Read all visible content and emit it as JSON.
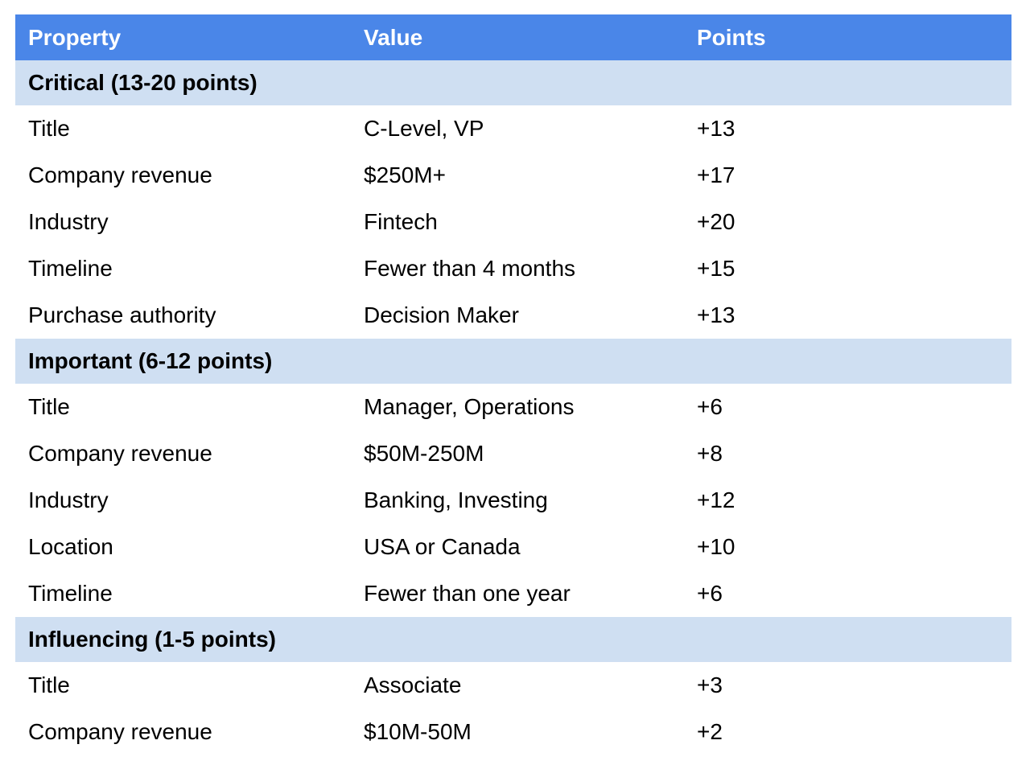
{
  "colors": {
    "header_bg": "#4a86e8",
    "header_text": "#ffffff",
    "section_band_bg": "#cfdff2",
    "body_text": "#000000",
    "page_bg": "#ffffff"
  },
  "table": {
    "columns": [
      "Property",
      "Value",
      "Points"
    ],
    "sections": [
      {
        "title": "Critical (13-20 points)",
        "rows": [
          {
            "property": "Title",
            "value": "C-Level, VP",
            "points": "+13"
          },
          {
            "property": "Company revenue",
            "value": "$250M+",
            "points": "+17"
          },
          {
            "property": "Industry",
            "value": "Fintech",
            "points": "+20"
          },
          {
            "property": "Timeline",
            "value": "Fewer than 4 months",
            "points": "+15"
          },
          {
            "property": "Purchase authority",
            "value": "Decision Maker",
            "points": "+13"
          }
        ]
      },
      {
        "title": "Important (6-12 points)",
        "rows": [
          {
            "property": "Title",
            "value": "Manager, Operations",
            "points": "+6"
          },
          {
            "property": "Company revenue",
            "value": "$50M-250M",
            "points": "+8"
          },
          {
            "property": "Industry",
            "value": "Banking, Investing",
            "points": "+12"
          },
          {
            "property": "Location",
            "value": "USA or Canada",
            "points": "+10"
          },
          {
            "property": "Timeline",
            "value": "Fewer than one year",
            "points": "+6"
          }
        ]
      },
      {
        "title": "Influencing (1-5 points)",
        "rows": [
          {
            "property": "Title",
            "value": "Associate",
            "points": "+3"
          },
          {
            "property": "Company revenue",
            "value": "$10M-50M",
            "points": "+2"
          }
        ]
      }
    ]
  }
}
